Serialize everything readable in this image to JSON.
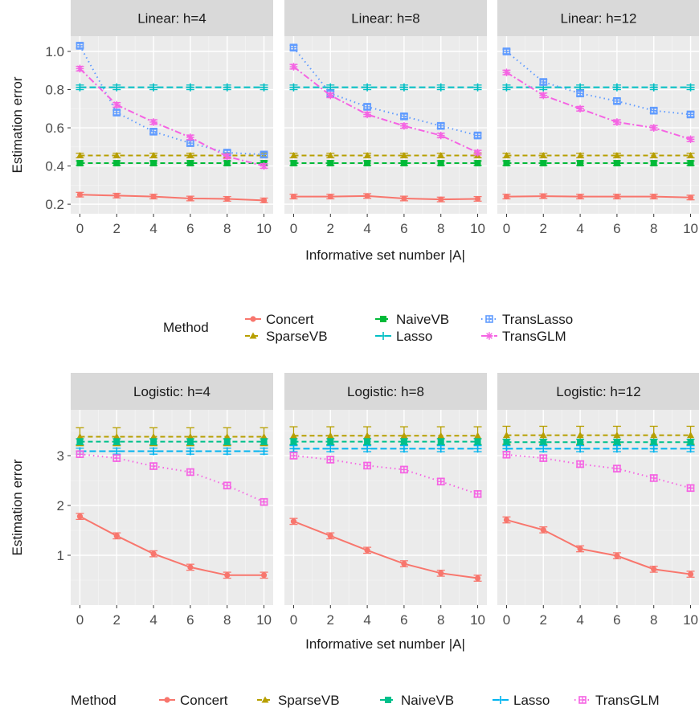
{
  "colors": {
    "Concert": "#F8766D",
    "SparseVB": "#B79F00",
    "NaiveVB": "#00BA38",
    "NaiveVB_logistic": "#00C08B",
    "Lasso": "#00BFC4",
    "Lasso_logistic": "#00B4F0",
    "TransLasso": "#619CFF",
    "TransGLM": "#F564E3",
    "panel_bg": "#EBEBEB",
    "strip_bg": "#D9D9D9"
  },
  "chart_data": [
    {
      "type": "line",
      "group": "Linear",
      "x": [
        0,
        2,
        4,
        6,
        8,
        10
      ],
      "xlabel": "Informative set number |A|",
      "ylabel": "Estimation error",
      "ylim": [
        0.15,
        1.08
      ],
      "yticks": [
        "0.2",
        "0.4",
        "0.6",
        "0.8",
        "1.0"
      ],
      "xticks": [
        "0",
        "2",
        "4",
        "6",
        "8",
        "10"
      ],
      "legend": {
        "title": "Method",
        "entries": [
          "Concert",
          "SparseVB",
          "NaiveVB",
          "Lasso",
          "TransLasso",
          "TransGLM"
        ]
      },
      "panels": [
        {
          "strip": "Linear: h=4",
          "series": [
            {
              "name": "Concert",
              "values": [
                0.25,
                0.245,
                0.24,
                0.23,
                0.228,
                0.22
              ]
            },
            {
              "name": "SparseVB",
              "values": [
                0.455,
                0.455,
                0.455,
                0.455,
                0.455,
                0.455
              ]
            },
            {
              "name": "NaiveVB",
              "values": [
                0.415,
                0.415,
                0.415,
                0.415,
                0.415,
                0.415
              ]
            },
            {
              "name": "Lasso",
              "values": [
                0.812,
                0.812,
                0.812,
                0.812,
                0.812,
                0.812
              ]
            },
            {
              "name": "TransLasso",
              "values": [
                1.03,
                0.68,
                0.58,
                0.52,
                0.47,
                0.46
              ]
            },
            {
              "name": "TransGLM",
              "values": [
                0.91,
                0.72,
                0.63,
                0.55,
                0.45,
                0.4
              ]
            }
          ]
        },
        {
          "strip": "Linear: h=8",
          "series": [
            {
              "name": "Concert",
              "values": [
                0.24,
                0.24,
                0.243,
                0.23,
                0.225,
                0.228
              ]
            },
            {
              "name": "SparseVB",
              "values": [
                0.455,
                0.455,
                0.455,
                0.455,
                0.455,
                0.455
              ]
            },
            {
              "name": "NaiveVB",
              "values": [
                0.415,
                0.415,
                0.415,
                0.415,
                0.415,
                0.415
              ]
            },
            {
              "name": "Lasso",
              "values": [
                0.812,
                0.812,
                0.812,
                0.812,
                0.812,
                0.812
              ]
            },
            {
              "name": "TransLasso",
              "values": [
                1.02,
                0.78,
                0.71,
                0.66,
                0.61,
                0.56
              ]
            },
            {
              "name": "TransGLM",
              "values": [
                0.92,
                0.77,
                0.67,
                0.61,
                0.56,
                0.47
              ]
            }
          ]
        },
        {
          "strip": "Linear: h=12",
          "series": [
            {
              "name": "Concert",
              "values": [
                0.24,
                0.242,
                0.24,
                0.24,
                0.24,
                0.235
              ]
            },
            {
              "name": "SparseVB",
              "values": [
                0.455,
                0.455,
                0.455,
                0.455,
                0.455,
                0.455
              ]
            },
            {
              "name": "NaiveVB",
              "values": [
                0.415,
                0.415,
                0.415,
                0.415,
                0.415,
                0.415
              ]
            },
            {
              "name": "Lasso",
              "values": [
                0.812,
                0.812,
                0.812,
                0.812,
                0.812,
                0.812
              ]
            },
            {
              "name": "TransLasso",
              "values": [
                1.0,
                0.84,
                0.78,
                0.74,
                0.69,
                0.67
              ]
            },
            {
              "name": "TransGLM",
              "values": [
                0.89,
                0.77,
                0.7,
                0.63,
                0.6,
                0.54
              ]
            }
          ]
        }
      ]
    },
    {
      "type": "line",
      "group": "Logistic",
      "x": [
        0,
        2,
        4,
        6,
        8,
        10
      ],
      "xlabel": "Informative set number |A|",
      "ylabel": "Estimation error",
      "ylim": [
        0.0,
        3.92
      ],
      "yticks": [
        "1",
        "2",
        "3"
      ],
      "xticks": [
        "0",
        "2",
        "4",
        "6",
        "8",
        "10"
      ],
      "legend": {
        "title": "Method",
        "entries": [
          "Concert",
          "SparseVB",
          "NaiveVB",
          "Lasso",
          "TransGLM"
        ]
      },
      "panels": [
        {
          "strip": "Logistic: h=4",
          "series": [
            {
              "name": "Concert",
              "values": [
                1.78,
                1.39,
                1.03,
                0.76,
                0.6,
                0.6
              ]
            },
            {
              "name": "SparseVB",
              "values": [
                3.38,
                3.38,
                3.38,
                3.38,
                3.38,
                3.38
              ]
            },
            {
              "name": "NaiveVB",
              "values": [
                3.28,
                3.28,
                3.28,
                3.28,
                3.28,
                3.28
              ]
            },
            {
              "name": "Lasso",
              "values": [
                3.09,
                3.09,
                3.09,
                3.09,
                3.09,
                3.09
              ]
            },
            {
              "name": "TransGLM",
              "values": [
                3.03,
                2.95,
                2.79,
                2.67,
                2.4,
                2.07
              ]
            }
          ]
        },
        {
          "strip": "Logistic: h=8",
          "series": [
            {
              "name": "Concert",
              "values": [
                1.68,
                1.39,
                1.1,
                0.83,
                0.64,
                0.54
              ]
            },
            {
              "name": "SparseVB",
              "values": [
                3.4,
                3.4,
                3.4,
                3.4,
                3.4,
                3.4
              ]
            },
            {
              "name": "NaiveVB",
              "values": [
                3.28,
                3.28,
                3.28,
                3.28,
                3.28,
                3.28
              ]
            },
            {
              "name": "Lasso",
              "values": [
                3.14,
                3.14,
                3.14,
                3.14,
                3.14,
                3.14
              ]
            },
            {
              "name": "TransGLM",
              "values": [
                3.0,
                2.92,
                2.8,
                2.72,
                2.48,
                2.23
              ]
            }
          ]
        },
        {
          "strip": "Logistic: h=12",
          "series": [
            {
              "name": "Concert",
              "values": [
                1.71,
                1.51,
                1.13,
                0.99,
                0.72,
                0.62
              ]
            },
            {
              "name": "SparseVB",
              "values": [
                3.41,
                3.41,
                3.41,
                3.41,
                3.41,
                3.41
              ]
            },
            {
              "name": "NaiveVB",
              "values": [
                3.27,
                3.27,
                3.27,
                3.27,
                3.27,
                3.27
              ]
            },
            {
              "name": "Lasso",
              "values": [
                3.14,
                3.14,
                3.14,
                3.14,
                3.14,
                3.14
              ]
            },
            {
              "name": "TransGLM",
              "values": [
                3.02,
                2.95,
                2.83,
                2.74,
                2.55,
                2.35
              ]
            }
          ]
        }
      ]
    }
  ]
}
